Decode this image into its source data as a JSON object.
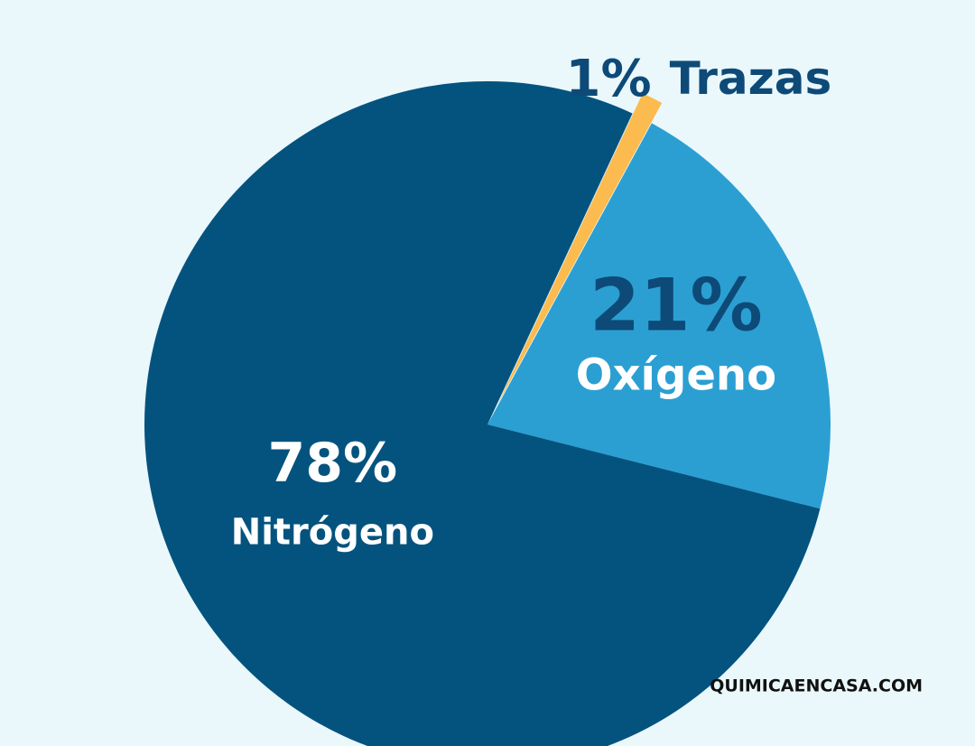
{
  "chart_data": {
    "type": "pie",
    "categories": [
      "Nitrógeno",
      "Oxígeno",
      "Trazas"
    ],
    "values": [
      78,
      21,
      1
    ],
    "value_labels": [
      "78%",
      "21%",
      "1%"
    ],
    "colors": [
      "#04537f",
      "#2b9fd2",
      "#fbbb4f"
    ],
    "source": "QUIMICAENCASA.COM"
  }
}
